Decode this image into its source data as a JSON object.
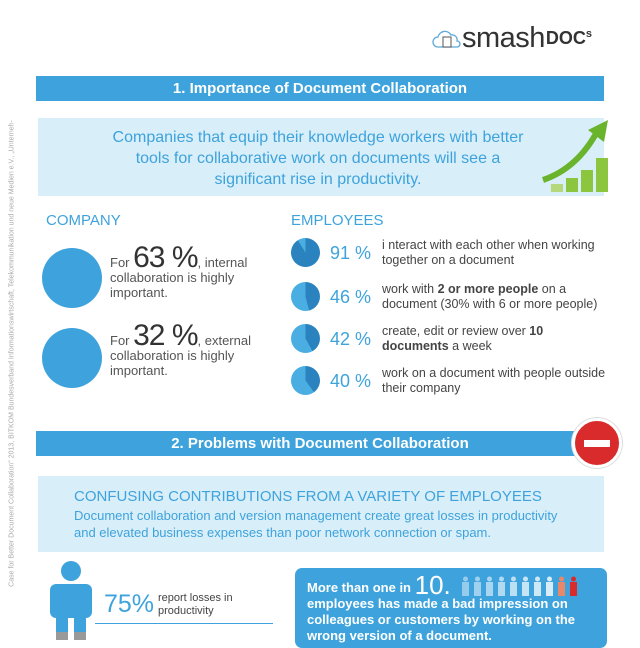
{
  "side_note": "Case for Better Document Collaboration\" 2013, BITKOM Bundesverband Informationswirtschaft, Telekommunikation und neue Medien e.V., „Unterneh-",
  "logo": {
    "main": "smash",
    "bold": "DOC",
    "sup": "s"
  },
  "section1": {
    "title": "1. Importance of Document Collaboration",
    "intro": "Companies that equip their knowledge workers with better tools for collaborative work on documents will see a significant rise in productivity.",
    "company": {
      "heading": "COMPANY",
      "items": [
        {
          "pre": "For",
          "value": "63 %",
          "post": ", internal collaboration is highly important.",
          "icon": "internal-collaboration-icon"
        },
        {
          "pre": "For",
          "value": "32 %",
          "post": ", external collaboration is highly important.",
          "icon": "globe-collaboration-icon"
        }
      ]
    },
    "employees": {
      "heading": "EMPLOYEES",
      "items": [
        {
          "value": "91 %",
          "percent": 91,
          "text": "i nteract with each other when working together on a document"
        },
        {
          "value": "46 %",
          "percent": 46,
          "t1": "work with ",
          "b": "2 or more people",
          "t2": " on a document (30% with 6 or more people)"
        },
        {
          "value": "42 %",
          "percent": 42,
          "t1": "create, edit or review over ",
          "b": "10 documents",
          "t2": " a week"
        },
        {
          "value": "40 %",
          "percent": 40,
          "text": "work on a document with people outside their company"
        }
      ]
    }
  },
  "section2": {
    "title": "2. Problems with Document Collaboration",
    "subtitle": "CONFUSING CONTRIBUTIONS FROM A VARIETY OF EMPLOYEES",
    "desc": "Document collaboration and version management create great losses in productivity and elevated business expenses than poor network connection or spam.",
    "stat": {
      "value": "75%",
      "text": "report losses in productivity"
    },
    "box": {
      "pre": "More than one in",
      "num": "10.",
      "text": "employees has made a bad impression on colleagues or customers by working on the wrong version of a document."
    }
  },
  "colors": {
    "accent": "#3ea3dc",
    "light": "#d8eef9",
    "red": "#d92b2b"
  }
}
